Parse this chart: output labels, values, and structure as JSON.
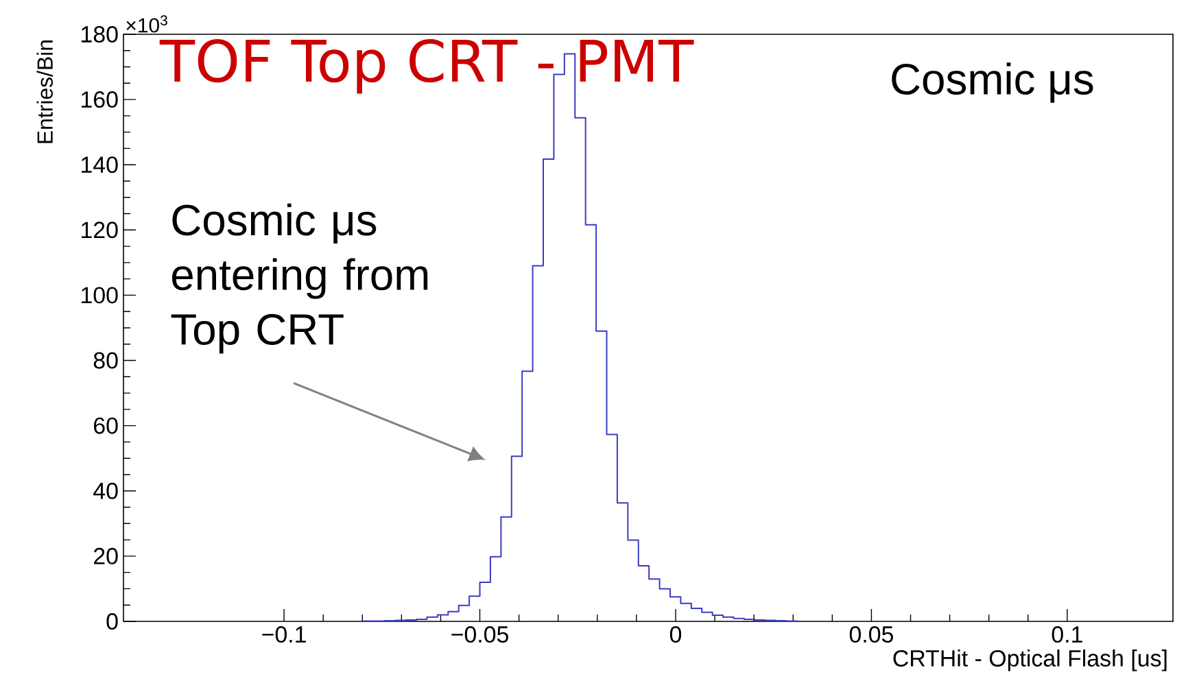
{
  "chart_data": {
    "type": "histogram",
    "title": "TOF Top CRT - PMT",
    "xlabel": "CRTHit - Optical Flash [us]",
    "ylabel": "Entries/Bin",
    "bins": [
      -0.0797,
      -0.077,
      -0.0743,
      -0.0716,
      -0.0689,
      -0.0662,
      -0.0635,
      -0.0608,
      -0.0581,
      -0.0554,
      -0.0527,
      -0.05,
      -0.0473,
      -0.0446,
      -0.0419,
      -0.0392,
      -0.0365,
      -0.0338,
      -0.0311,
      -0.0284,
      -0.0257,
      -0.023,
      -0.0203,
      -0.0176,
      -0.0149,
      -0.0122,
      -0.0095,
      -0.0068,
      -0.0041,
      -0.0014,
      0.0013,
      0.004,
      0.0067,
      0.0094,
      0.0121,
      0.0148,
      0.0175,
      0.0202,
      0.0229,
      0.0256,
      0.0283,
      0.031
    ],
    "values": [
      0.1,
      0.1,
      0.2,
      0.3,
      0.4,
      0.6,
      1.3,
      2,
      3,
      4.9,
      7.7,
      12,
      19.8,
      32,
      50.6,
      76.7,
      109,
      141.7,
      167.7,
      174,
      154.4,
      121.6,
      89,
      57.3,
      36.3,
      24.9,
      17,
      13,
      10,
      7.5,
      5.5,
      4,
      2.8,
      1.9,
      1.3,
      0.9,
      0.6,
      0.4,
      0.3,
      0.2,
      0.1
    ],
    "color": "#3b3bc4",
    "xlim": [
      -0.141,
      0.127
    ],
    "ylim": [
      0,
      180
    ],
    "xticks": [
      {
        "value": -0.1,
        "label": "−0.1"
      },
      {
        "value": -0.05,
        "label": "−0.05"
      },
      0,
      0.05,
      0.1
    ],
    "yticks": [
      0,
      20,
      40,
      60,
      80,
      100,
      120,
      140,
      160,
      180
    ],
    "annotations": [
      "×10$^{3}$",
      "Cosmic μs",
      "Cosmic μs entering from Top CRT"
    ],
    "grid": false
  }
}
